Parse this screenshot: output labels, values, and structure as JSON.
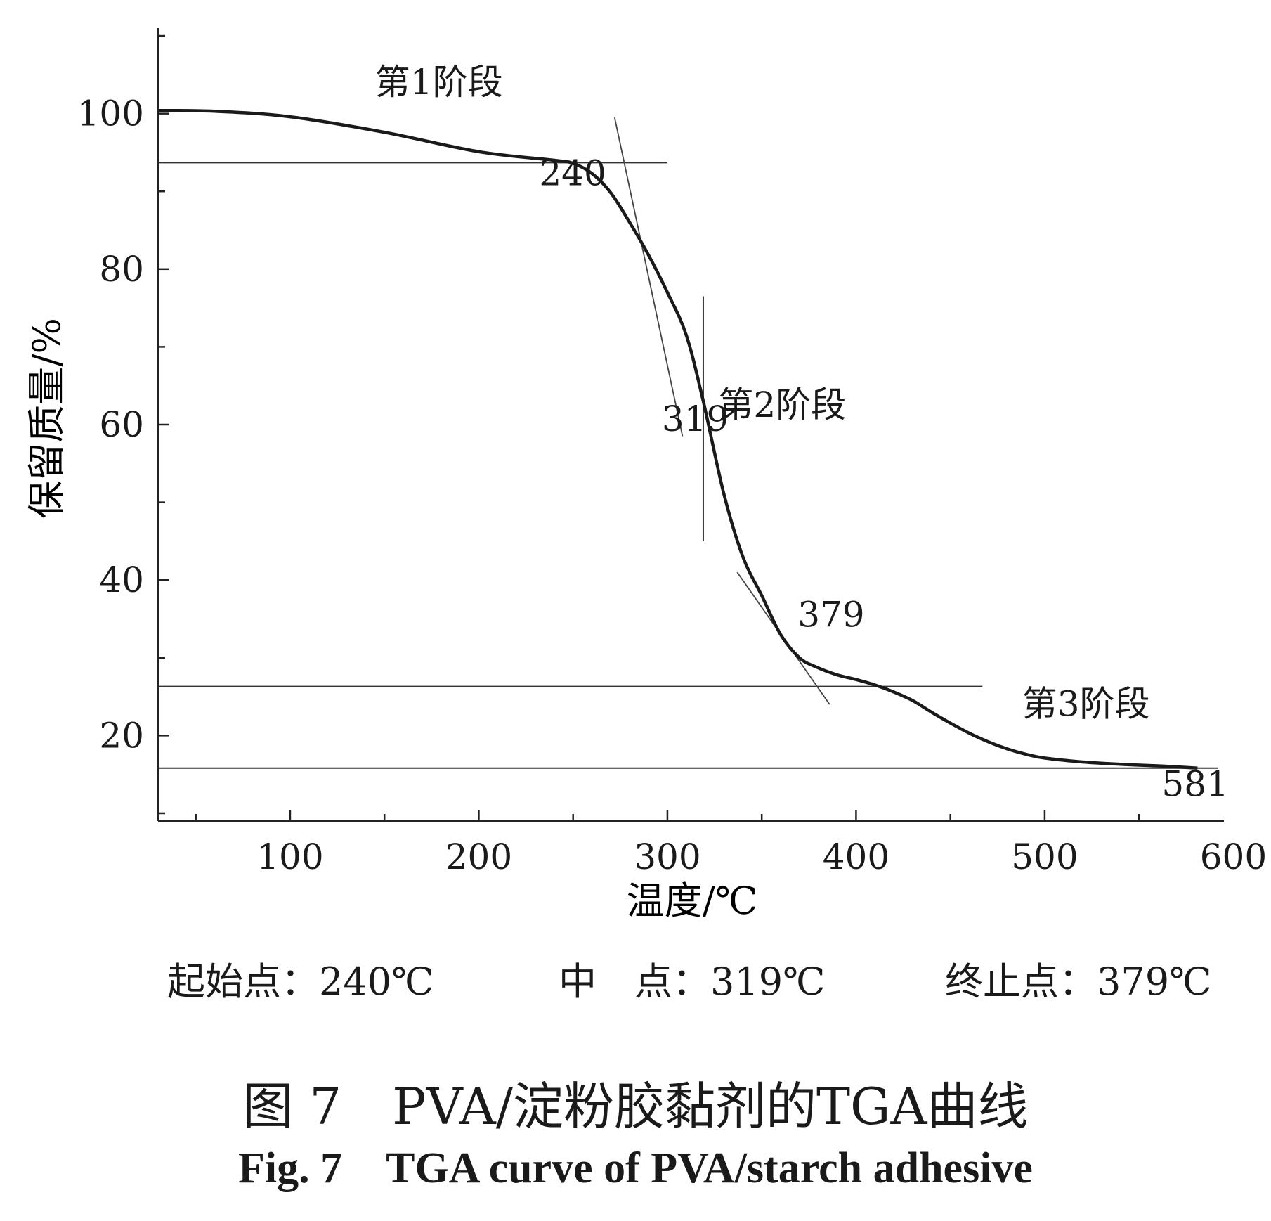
{
  "chart_data": {
    "type": "line",
    "xlabel": "温度/℃",
    "ylabel": "保留质量/%",
    "xlim": [
      30,
      595
    ],
    "ylim": [
      9,
      111
    ],
    "x_ticks": [
      100,
      200,
      300,
      400,
      500,
      600
    ],
    "y_ticks": [
      20,
      40,
      60,
      80,
      100
    ],
    "x_minor_step": 50,
    "y_minor_step": 10,
    "grid": false,
    "series": [
      {
        "x": [
          30,
          60,
          100,
          150,
          200,
          240,
          250,
          260,
          270,
          280,
          290,
          300,
          310,
          319,
          330,
          340,
          350,
          360,
          370,
          379,
          390,
          400,
          410,
          420,
          430,
          440,
          450,
          460,
          470,
          480,
          490,
          500,
          520,
          540,
          560,
          581
        ],
        "y": [
          100.4,
          100.3,
          99.6,
          97.6,
          95.1,
          94.0,
          93.6,
          92.3,
          89.8,
          86.0,
          81.8,
          77.0,
          71.5,
          63.0,
          51.0,
          43.0,
          38.0,
          33.0,
          30.0,
          28.8,
          27.8,
          27.2,
          26.5,
          25.6,
          24.5,
          23.0,
          21.6,
          20.3,
          19.2,
          18.3,
          17.6,
          17.1,
          16.6,
          16.3,
          16.1,
          15.8
        ]
      }
    ],
    "horizontal_lines": [
      93.7,
      26.3,
      15.8
    ],
    "tangent_lines": [
      {
        "x": [
          272,
          308
        ],
        "y": [
          99.5,
          58.5
        ]
      },
      {
        "x": [
          337,
          386
        ],
        "y": [
          41.0,
          24.0
        ]
      }
    ],
    "midpoint_marker": {
      "x": 319,
      "y": [
        45.0,
        76.5
      ]
    },
    "annotations": [
      {
        "text": "第1阶段",
        "x": 145,
        "y": 102.5
      },
      {
        "text": "240",
        "x": 232,
        "y": 90.8
      },
      {
        "text": "第2阶段",
        "x": 327,
        "y": 61.0
      },
      {
        "text": "319",
        "x": 297,
        "y": 59.2
      },
      {
        "text": "379",
        "x": 369,
        "y": 34.0
      },
      {
        "text": "第3阶段",
        "x": 488,
        "y": 22.5
      },
      {
        "text": "581",
        "x": 562,
        "y": 12.2
      }
    ]
  },
  "summary": {
    "onset_label": "起始点：240℃",
    "mid_label": "中　点：319℃",
    "end_label": "终止点：379℃"
  },
  "caption": {
    "zh": "图 7　PVA/淀粉胶黏剂的TGA曲线",
    "en": "Fig. 7　TGA curve of PVA/starch adhesive"
  }
}
